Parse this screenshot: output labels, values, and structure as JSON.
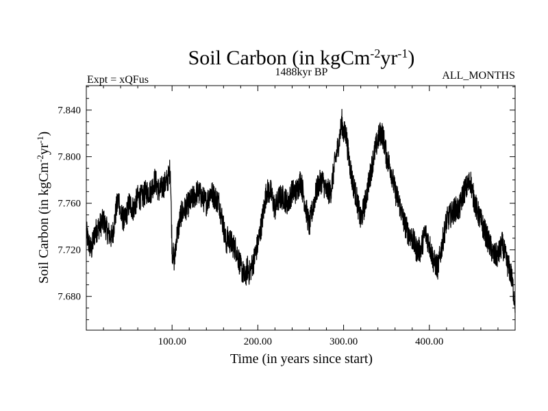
{
  "colors": {
    "background": "#ffffff",
    "series_line": "#000000",
    "axis": "#000000"
  },
  "chart_data": {
    "type": "line",
    "title_main": "Soil Carbon (in kgCm",
    "title_sup1": "-2",
    "title_mid": "yr",
    "title_sup2": "-1",
    "title_close": ")",
    "header_left": "Expt = xQFus",
    "header_center": "1488kyr BP",
    "header_right": "ALL_MONTHS",
    "xlabel": "Time (in years since start)",
    "ylabel_main": "Soil Carbon (in kgCm",
    "ylabel_sup1": "-2",
    "ylabel_mid": "yr",
    "ylabel_sup2": "-1",
    "ylabel_close": ")",
    "xlim": [
      0,
      500
    ],
    "ylim": [
      7.651,
      7.861
    ],
    "x_ticks": [
      {
        "value": 100,
        "label": "100.00"
      },
      {
        "value": 200,
        "label": "200.00"
      },
      {
        "value": 300,
        "label": "300.00"
      },
      {
        "value": 400,
        "label": "400.00"
      }
    ],
    "y_ticks": [
      {
        "value": 7.68,
        "label": "7.680"
      },
      {
        "value": 7.72,
        "label": "7.720"
      },
      {
        "value": 7.76,
        "label": "7.760"
      },
      {
        "value": 7.8,
        "label": "7.800"
      },
      {
        "value": 7.84,
        "label": "7.840"
      }
    ],
    "grid": false,
    "series": [
      {
        "x": [
          0,
          3,
          6,
          10,
          15,
          20,
          25,
          30,
          35,
          38,
          40,
          45,
          50,
          55,
          60,
          65,
          70,
          75,
          80,
          85,
          90,
          95,
          98,
          100,
          103,
          105,
          108,
          110,
          115,
          120,
          125,
          130,
          135,
          140,
          145,
          150,
          155,
          160,
          163,
          165,
          170,
          175,
          180,
          183,
          185,
          188,
          190,
          195,
          200,
          205,
          210,
          215,
          220,
          225,
          230,
          235,
          240,
          245,
          250,
          255,
          260,
          265,
          270,
          275,
          280,
          285,
          290,
          295,
          298,
          300,
          303,
          305,
          308,
          310,
          315,
          320,
          325,
          330,
          335,
          340,
          343,
          345,
          348,
          350,
          355,
          360,
          365,
          370,
          375,
          380,
          385,
          390,
          395,
          400,
          405,
          410,
          415,
          420,
          425,
          430,
          435,
          440,
          445,
          448,
          450,
          455,
          460,
          465,
          470,
          475,
          480,
          485,
          490,
          495,
          500
        ],
        "y": [
          7.735,
          7.725,
          7.72,
          7.735,
          7.74,
          7.745,
          7.735,
          7.73,
          7.755,
          7.765,
          7.75,
          7.745,
          7.76,
          7.755,
          7.765,
          7.765,
          7.77,
          7.77,
          7.78,
          7.77,
          7.775,
          7.78,
          7.79,
          7.72,
          7.71,
          7.73,
          7.74,
          7.75,
          7.755,
          7.76,
          7.765,
          7.77,
          7.765,
          7.76,
          7.77,
          7.765,
          7.76,
          7.74,
          7.725,
          7.73,
          7.725,
          7.72,
          7.705,
          7.7,
          7.695,
          7.705,
          7.7,
          7.71,
          7.725,
          7.745,
          7.77,
          7.77,
          7.755,
          7.765,
          7.765,
          7.76,
          7.77,
          7.77,
          7.78,
          7.76,
          7.74,
          7.76,
          7.775,
          7.78,
          7.77,
          7.77,
          7.795,
          7.815,
          7.83,
          7.82,
          7.82,
          7.805,
          7.79,
          7.78,
          7.765,
          7.745,
          7.76,
          7.78,
          7.8,
          7.815,
          7.82,
          7.82,
          7.81,
          7.8,
          7.79,
          7.77,
          7.76,
          7.745,
          7.735,
          7.73,
          7.72,
          7.72,
          7.735,
          7.725,
          7.71,
          7.705,
          7.725,
          7.745,
          7.75,
          7.755,
          7.755,
          7.77,
          7.775,
          7.78,
          7.77,
          7.755,
          7.745,
          7.735,
          7.725,
          7.715,
          7.715,
          7.725,
          7.71,
          7.7,
          7.675
        ],
        "noise_amplitude": 0.022
      }
    ]
  }
}
